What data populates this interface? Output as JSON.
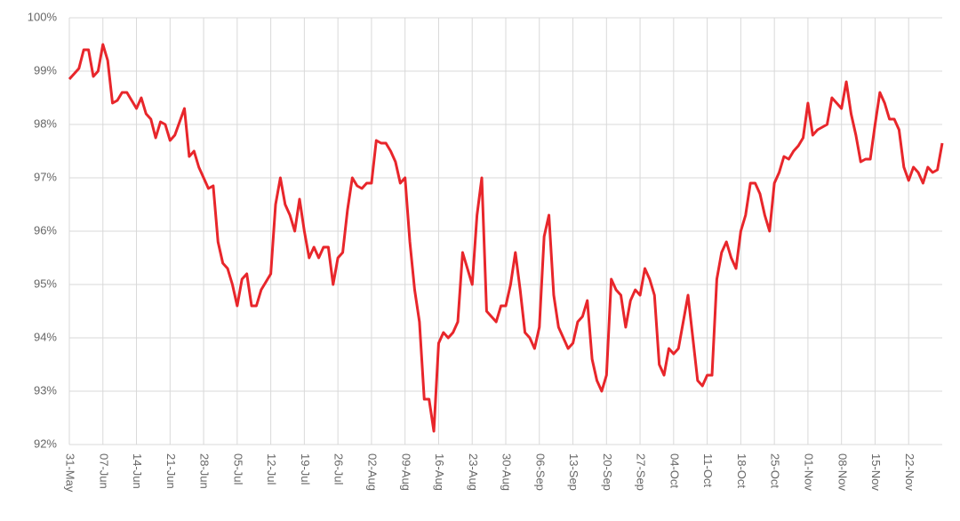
{
  "chart_data": {
    "type": "line",
    "categories": [
      "31-May",
      null,
      null,
      null,
      null,
      null,
      null,
      "07-Jun",
      null,
      null,
      null,
      null,
      null,
      null,
      "14-Jun",
      null,
      null,
      null,
      null,
      null,
      null,
      "21-Jun",
      null,
      null,
      null,
      null,
      null,
      null,
      "28-Jun",
      null,
      null,
      null,
      null,
      null,
      null,
      "05-Jul",
      null,
      null,
      null,
      null,
      null,
      null,
      "12-Jul",
      null,
      null,
      null,
      null,
      null,
      null,
      "19-Jul",
      null,
      null,
      null,
      null,
      null,
      null,
      "26-Jul",
      null,
      null,
      null,
      null,
      null,
      null,
      "02-Aug",
      null,
      null,
      null,
      null,
      null,
      null,
      "09-Aug",
      null,
      null,
      null,
      null,
      null,
      null,
      "16-Aug",
      null,
      null,
      null,
      null,
      null,
      null,
      "23-Aug",
      null,
      null,
      null,
      null,
      null,
      null,
      "30-Aug",
      null,
      null,
      null,
      null,
      null,
      null,
      "06-Sep",
      null,
      null,
      null,
      null,
      null,
      null,
      "13-Sep",
      null,
      null,
      null,
      null,
      null,
      null,
      "20-Sep",
      null,
      null,
      null,
      null,
      null,
      null,
      "27-Sep",
      null,
      null,
      null,
      null,
      null,
      null,
      "04-Oct",
      null,
      null,
      null,
      null,
      null,
      null,
      "11-Oct",
      null,
      null,
      null,
      null,
      null,
      null,
      "18-Oct",
      null,
      null,
      null,
      null,
      null,
      null,
      "25-Oct",
      null,
      null,
      null,
      null,
      null,
      null,
      "01-Nov",
      null,
      null,
      null,
      null,
      null,
      null,
      "08-Nov",
      null,
      null,
      null,
      null,
      null,
      null,
      "15-Nov",
      null,
      null,
      null,
      null,
      null,
      null,
      "22-Nov",
      null,
      null,
      null,
      null,
      null,
      null,
      null
    ],
    "values": [
      98.85,
      98.95,
      99.05,
      99.4,
      99.4,
      98.9,
      99.0,
      99.5,
      99.2,
      98.4,
      98.45,
      98.6,
      98.6,
      98.45,
      98.3,
      98.5,
      98.2,
      98.1,
      97.75,
      98.05,
      98.0,
      97.7,
      97.8,
      98.05,
      98.3,
      97.4,
      97.5,
      97.2,
      97.0,
      96.8,
      96.85,
      95.8,
      95.4,
      95.3,
      95.0,
      94.6,
      95.1,
      95.2,
      94.6,
      94.6,
      94.9,
      95.05,
      95.2,
      96.5,
      97.0,
      96.5,
      96.3,
      96.0,
      96.6,
      96.0,
      95.5,
      95.7,
      95.5,
      95.7,
      95.7,
      95.0,
      95.5,
      95.6,
      96.4,
      97.0,
      96.85,
      96.8,
      96.9,
      96.9,
      97.7,
      97.65,
      97.65,
      97.5,
      97.3,
      96.9,
      97.0,
      95.8,
      94.9,
      94.3,
      92.85,
      92.85,
      92.25,
      93.9,
      94.1,
      94.0,
      94.1,
      94.3,
      95.6,
      95.3,
      95.0,
      96.3,
      97.0,
      94.5,
      94.4,
      94.3,
      94.6,
      94.6,
      95.0,
      95.6,
      94.9,
      94.1,
      94.0,
      93.8,
      94.2,
      95.9,
      96.3,
      94.8,
      94.2,
      94.0,
      93.8,
      93.9,
      94.3,
      94.4,
      94.7,
      93.6,
      93.2,
      93.0,
      93.3,
      95.1,
      94.9,
      94.8,
      94.2,
      94.7,
      94.9,
      94.8,
      95.3,
      95.1,
      94.8,
      93.5,
      93.3,
      93.8,
      93.7,
      93.8,
      94.3,
      94.8,
      94.0,
      93.2,
      93.1,
      93.3,
      93.3,
      95.1,
      95.6,
      95.8,
      95.5,
      95.3,
      96.0,
      96.3,
      96.9,
      96.9,
      96.7,
      96.3,
      96.0,
      96.9,
      97.1,
      97.4,
      97.35,
      97.5,
      97.6,
      97.75,
      98.4,
      97.8,
      97.9,
      97.95,
      98.0,
      98.5,
      98.4,
      98.3,
      98.8,
      98.2,
      97.8,
      97.3,
      97.35,
      97.35,
      98.0,
      98.6,
      98.4,
      98.1,
      98.1,
      97.9,
      97.2,
      96.95,
      97.2,
      97.1,
      96.9,
      97.2,
      97.1,
      97.15,
      97.65
    ],
    "color": "#e8262b",
    "ylim": [
      92,
      100
    ],
    "yticks": [
      {
        "value": 92,
        "label": "92%"
      },
      {
        "value": 93,
        "label": "93%"
      },
      {
        "value": 94,
        "label": "94%"
      },
      {
        "value": 95,
        "label": "95%"
      },
      {
        "value": 96,
        "label": "96%"
      },
      {
        "value": 97,
        "label": "97%"
      },
      {
        "value": 98,
        "label": "98%"
      },
      {
        "value": 99,
        "label": "99%"
      },
      {
        "value": 100,
        "label": "100%"
      }
    ],
    "grid": true
  }
}
